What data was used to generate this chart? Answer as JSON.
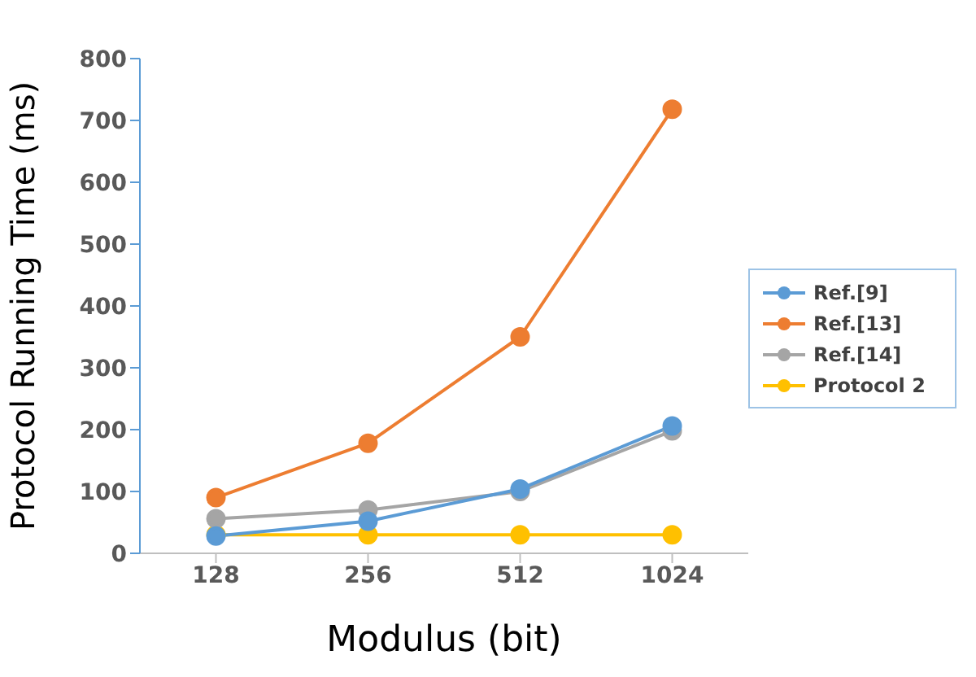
{
  "chart_data": {
    "type": "line",
    "xlabel": "Modulus (bit)",
    "ylabel": "Protocol Running Time (ms)",
    "categories": [
      "128",
      "256",
      "512",
      "1024"
    ],
    "series": [
      {
        "name": "Ref.[9]",
        "color": "#5b9bd5",
        "values": [
          28,
          52,
          104,
          206
        ]
      },
      {
        "name": "Ref.[13]",
        "color": "#ed7d31",
        "values": [
          90,
          178,
          350,
          718
        ]
      },
      {
        "name": "Ref.[14]",
        "color": "#a5a5a5",
        "values": [
          56,
          70,
          100,
          198
        ]
      },
      {
        "name": "Protocol 2",
        "color": "#ffc000",
        "values": [
          30,
          30,
          30,
          30
        ]
      }
    ],
    "ylim": [
      0,
      800
    ],
    "yticks": [
      0,
      100,
      200,
      300,
      400,
      500,
      600,
      700,
      800
    ],
    "grid": false,
    "legend": "right",
    "marker": "circle",
    "line_style": "solid"
  }
}
